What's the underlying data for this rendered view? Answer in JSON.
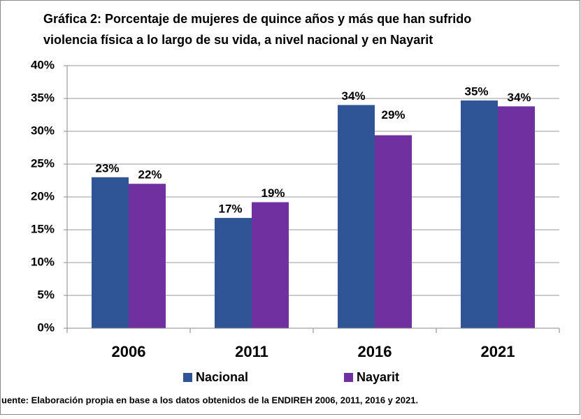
{
  "chart_data": {
    "type": "bar",
    "title": [
      "Gráfica 2: Porcentaje de mujeres de quince años y más que han sufrido",
      "violencia física a lo largo de su vida, a nivel nacional y en Nayarit"
    ],
    "categories": [
      "2006",
      "2011",
      "2016",
      "2021"
    ],
    "series": [
      {
        "name": "Nacional",
        "color": "#2f5597",
        "values": [
          23,
          16.8,
          34,
          34.7
        ],
        "value_labels": [
          "23%",
          "17%",
          "34%",
          "35%"
        ]
      },
      {
        "name": "Nayarit",
        "color": "#7030a0",
        "values": [
          22,
          19.2,
          29.4,
          33.8
        ],
        "value_labels": [
          "22%",
          "19%",
          "29%",
          "34%"
        ]
      }
    ],
    "ylim": [
      0,
      40
    ],
    "yticks": [
      {
        "value": 0,
        "label": "0%"
      },
      {
        "value": 5,
        "label": "5%"
      },
      {
        "value": 10,
        "label": "10%"
      },
      {
        "value": 15,
        "label": "15%"
      },
      {
        "value": 20,
        "label": "20%"
      },
      {
        "value": 25,
        "label": "25%"
      },
      {
        "value": 30,
        "label": "30%"
      },
      {
        "value": 35,
        "label": "35%"
      },
      {
        "value": 40,
        "label": "40%"
      }
    ],
    "grid": true,
    "legend": "bottom",
    "source": "uente: Elaboración propia en base a los datos obtenidos de la ENDIREH 2006, 2011, 2016 y 2021."
  }
}
